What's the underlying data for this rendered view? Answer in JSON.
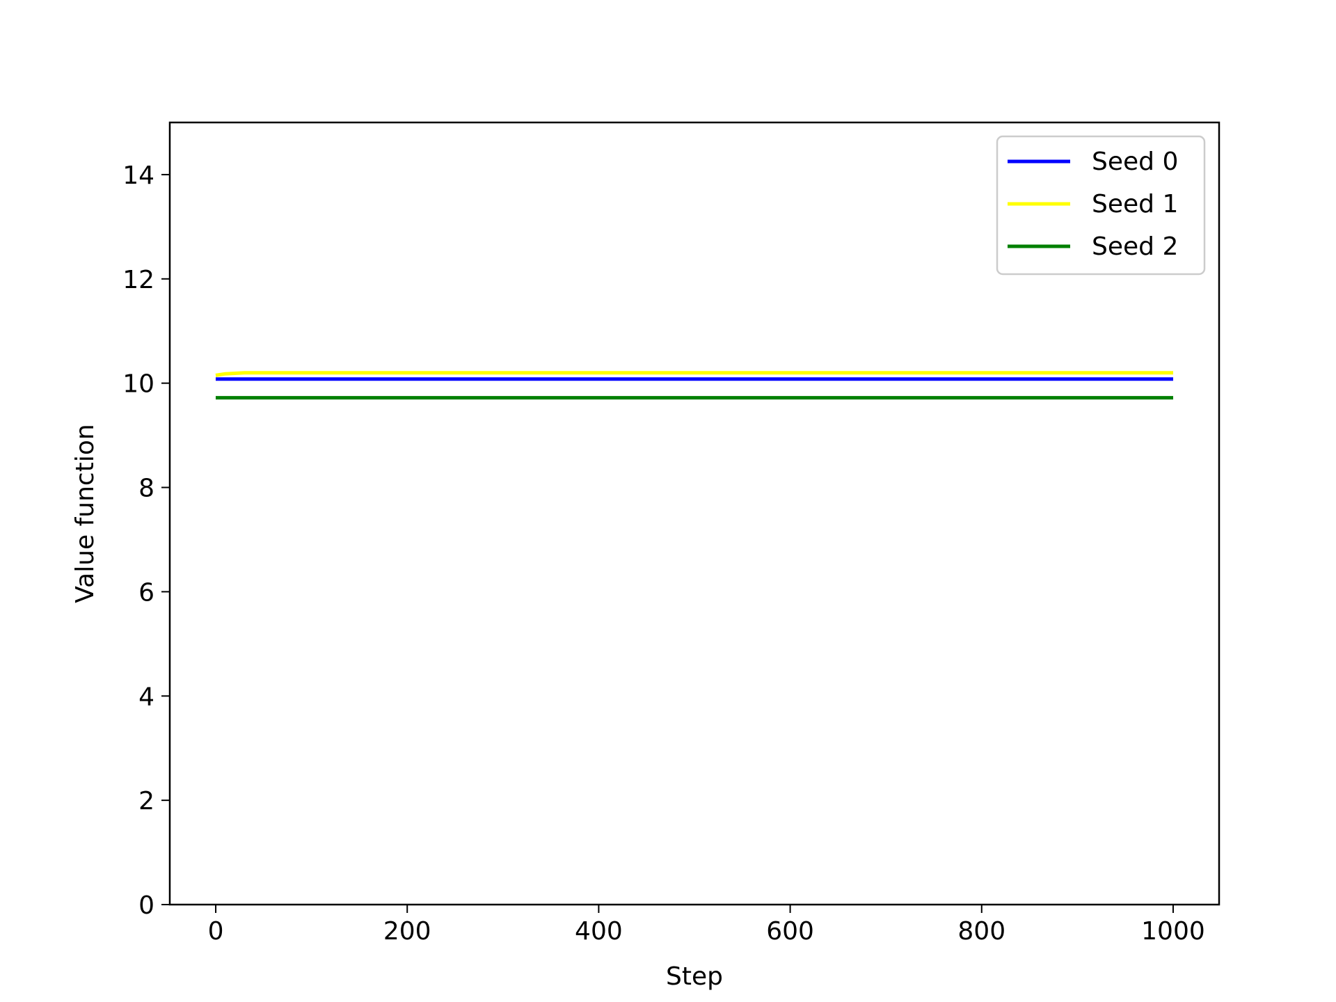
{
  "chart_data": {
    "type": "line",
    "title": "",
    "xlabel": "Step",
    "ylabel": "Value function",
    "xlim": [
      -48,
      1048
    ],
    "ylim": [
      0,
      15
    ],
    "xticks": [
      0,
      200,
      400,
      600,
      800,
      1000
    ],
    "yticks": [
      0,
      2,
      4,
      6,
      8,
      10,
      12,
      14
    ],
    "grid": false,
    "legend_position": "top-right",
    "series": [
      {
        "name": "Seed 0",
        "color": "#0000ff",
        "x": [
          0,
          1000
        ],
        "y": [
          10.08,
          10.08
        ]
      },
      {
        "name": "Seed 1",
        "color": "#ffff00",
        "x": [
          0,
          10,
          30,
          60,
          1000
        ],
        "y": [
          10.15,
          10.18,
          10.2,
          10.2,
          10.2
        ]
      },
      {
        "name": "Seed 2",
        "color": "#008000",
        "x": [
          0,
          1000
        ],
        "y": [
          9.72,
          9.72
        ]
      }
    ]
  }
}
